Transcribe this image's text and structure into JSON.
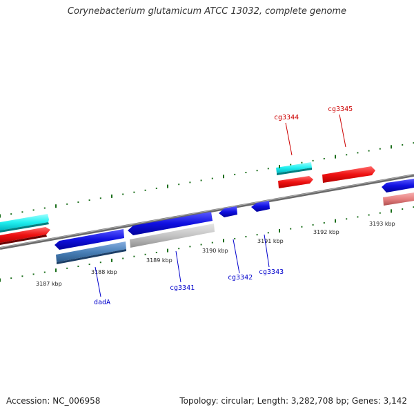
{
  "title": "Corynebacterium glutamicum ATCC 13032, complete genome",
  "footer": {
    "accession": "Accession: NC_006958",
    "summary": "Topology: circular; Length: 3,282,708 bp; Genes: 3,142"
  },
  "colors": {
    "forward_label": "#cc0000",
    "reverse_label": "#0000cc",
    "tick": "#1a6e1a",
    "backbone": "#808080"
  },
  "ticks": [
    "3187 kbp",
    "3188 kbp",
    "3189 kbp",
    "3190 kbp",
    "3191 kbp",
    "3192 kbp",
    "3193 kbp"
  ],
  "gene_labels": [
    {
      "name": "cg3344",
      "strand": "forward"
    },
    {
      "name": "cg3345",
      "strand": "forward"
    },
    {
      "name": "dadA",
      "strand": "reverse"
    },
    {
      "name": "cg3341",
      "strand": "reverse"
    },
    {
      "name": "cg3342",
      "strand": "reverse"
    },
    {
      "name": "cg3343",
      "strand": "reverse"
    }
  ]
}
